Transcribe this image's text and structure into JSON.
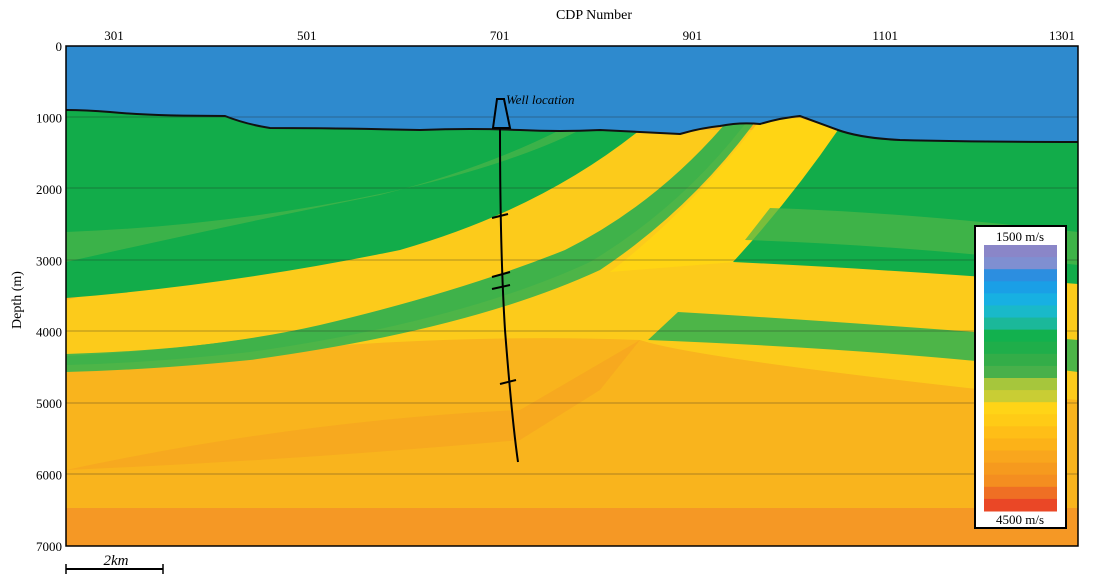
{
  "figure": {
    "top_axis_title": "CDP Number",
    "left_axis_title": "Depth (m)",
    "cdp_ticks": [
      "301",
      "501",
      "701",
      "901",
      "1101",
      "1301"
    ],
    "depth_ticks": [
      "0",
      "1000",
      "2000",
      "3000",
      "4000",
      "5000",
      "6000",
      "7000"
    ],
    "well_label": "Well location",
    "scale_bar_label": "2km"
  },
  "legend": {
    "max_label": "1500 m/s",
    "min_label": "4500 m/s",
    "colors": [
      "#8a86c8",
      "#7f8fd1",
      "#2c8ee0",
      "#1a9fe6",
      "#17b0e2",
      "#19b9c9",
      "#1bb89a",
      "#12b14e",
      "#1fae4a",
      "#33ad48",
      "#48b04a",
      "#a6c63c",
      "#c9cd34",
      "#ffd417",
      "#ffcb16",
      "#ffbe17",
      "#fcb218",
      "#f9a61d",
      "#f69a1e",
      "#f48e20",
      "#ef6f24",
      "#ea4726"
    ]
  },
  "colors": {
    "water": "#2e8ace",
    "green": "#12ac4a",
    "green_light": "#4db548",
    "yellow": "#fccb1b",
    "yellow_bright": "#ffd514",
    "orange": "#f9b41d",
    "orange_deep": "#f59825"
  }
}
